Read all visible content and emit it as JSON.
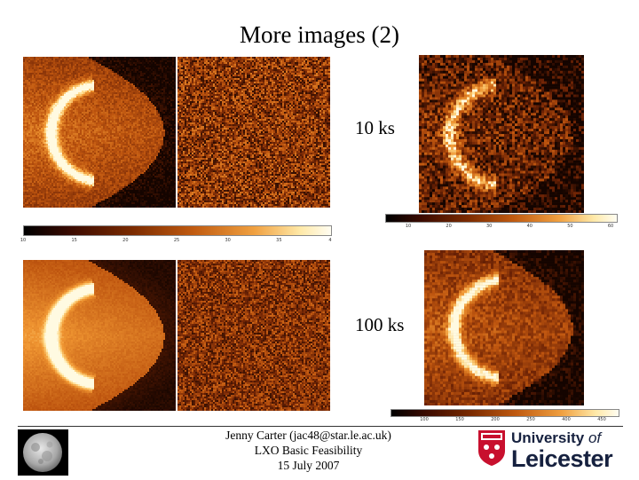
{
  "slide": {
    "title": "More images (2)"
  },
  "panels": {
    "label_10ks": "10 ks",
    "label_100ks": "100 ks"
  },
  "colorbars": {
    "left_top_ticks": [
      "10",
      "15",
      "20",
      "25",
      "30",
      "35",
      "4"
    ],
    "right_top_ticks": [
      "10",
      "20",
      "30",
      "40",
      "50",
      "60"
    ],
    "right_bottom_ticks": [
      "100",
      "150",
      "200",
      "250",
      "400",
      "450"
    ]
  },
  "footer": {
    "line1": "Jenny Carter (jac48@star.le.ac.uk)",
    "line2": "LXO Basic Feasibility",
    "line3": "15 July 2007"
  },
  "logo": {
    "line1_a": "University",
    "line1_b": "of",
    "line2": "Leicester"
  },
  "colors": {
    "dark": "#2a0800",
    "mid": "#b8500d",
    "bright": "#ffe9a0",
    "logo_navy": "#16213f",
    "shield_red": "#c8102e"
  }
}
